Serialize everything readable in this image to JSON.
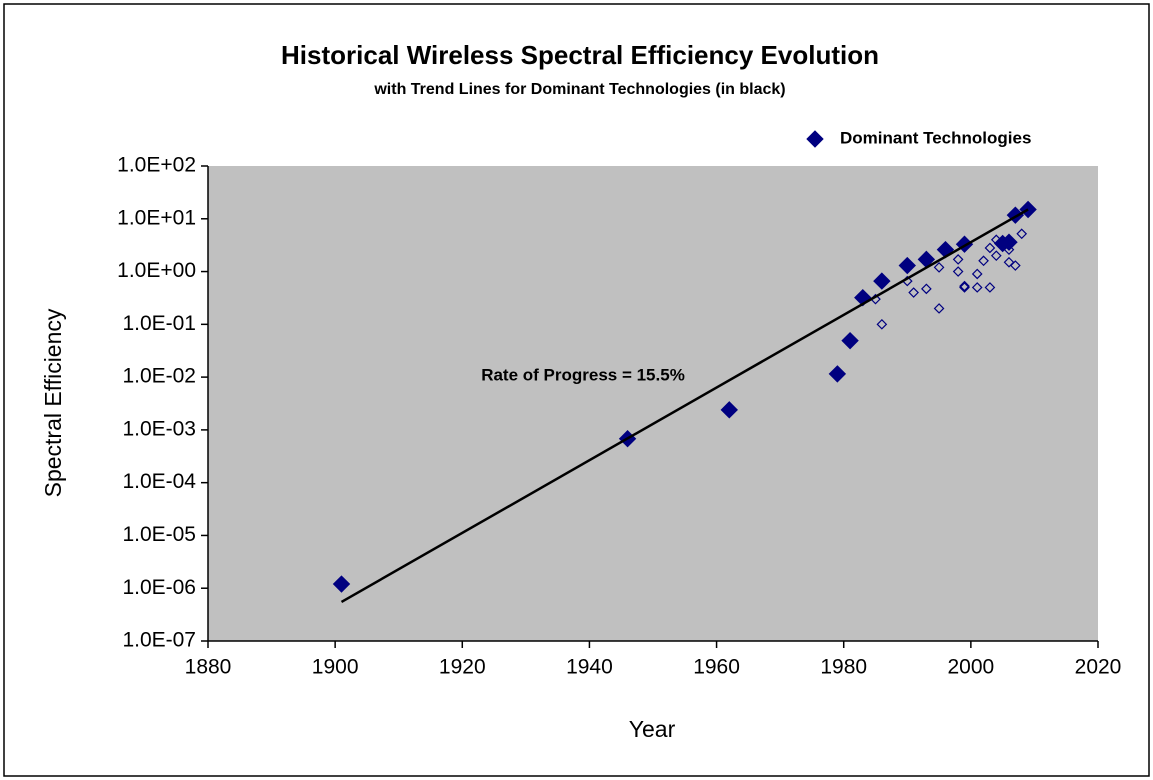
{
  "chart_data": {
    "type": "scatter",
    "title": "Historical Wireless Spectral Efficiency Evolution",
    "subtitle": "with Trend Lines for Dominant Technologies (in black)",
    "x_label": "Year",
    "y_label": "Spectral Efficiency",
    "annotation": "Rate of Progress = 15.5%",
    "xlim": [
      1880,
      2020
    ],
    "xticks": [
      1880,
      1900,
      1920,
      1940,
      1960,
      1980,
      2000,
      2020
    ],
    "ylim": [
      1e-07,
      100
    ],
    "ylog": true,
    "yticks": [
      {
        "value": 1e-07,
        "label": "1.0E-07"
      },
      {
        "value": 1e-06,
        "label": "1.0E-06"
      },
      {
        "value": 1e-05,
        "label": "1.0E-05"
      },
      {
        "value": 0.0001,
        "label": "1.0E-04"
      },
      {
        "value": 0.001,
        "label": "1.0E-03"
      },
      {
        "value": 0.01,
        "label": "1.0E-02"
      },
      {
        "value": 0.1,
        "label": "1.0E-01"
      },
      {
        "value": 1,
        "label": "1.0E+00"
      },
      {
        "value": 10,
        "label": "1.0E+01"
      },
      {
        "value": 100,
        "label": "1.0E+02"
      }
    ],
    "plot_background": "#c0c0c0",
    "legend": "top-right",
    "series": [
      {
        "name": "Dominant Technologies",
        "color": "#000080",
        "filled": true,
        "x": [
          1901,
          1946,
          1962,
          1979,
          1981,
          1983,
          1986,
          1990,
          1993,
          1996,
          1999,
          2005,
          2006,
          2007,
          2009
        ],
        "values": [
          1.2e-06,
          0.00068,
          0.0024,
          0.0115,
          0.049,
          0.32,
          0.66,
          1.3,
          1.7,
          2.6,
          3.3,
          3.4,
          3.6,
          11.7,
          15
        ]
      },
      {
        "color": "#000080",
        "filled": false,
        "x": [
          1985,
          1986,
          1990,
          1991,
          1993,
          1995,
          1995,
          1998,
          1998,
          1999,
          1999,
          2001,
          2001,
          2002,
          2003,
          2003,
          2004,
          2004,
          2006,
          2007,
          2008,
          2006
        ],
        "values": [
          0.3,
          0.1,
          0.66,
          0.4,
          0.47,
          0.2,
          1.2,
          1.7,
          1.0,
          0.53,
          0.5,
          0.9,
          0.5,
          1.6,
          0.5,
          2.8,
          2.0,
          4.0,
          1.5,
          1.3,
          5.2,
          2.6
        ]
      }
    ],
    "trend_line": {
      "color": "#000000",
      "x": [
        1901,
        2009
      ],
      "values": [
        5.5e-07,
        15
      ]
    }
  }
}
